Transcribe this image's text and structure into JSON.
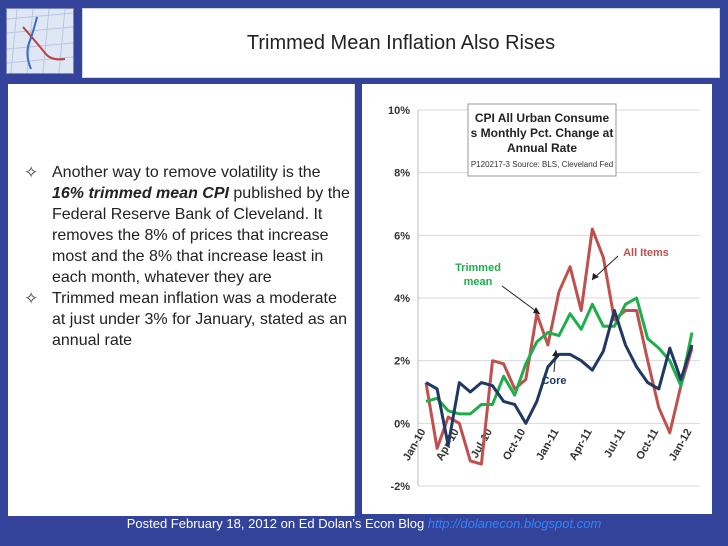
{
  "slide": {
    "title": "Trimmed Mean Inflation Also Rises",
    "bullets": [
      {
        "pre": "Another way to remove volatility is the ",
        "emph": "16% trimmed mean CPI",
        "post": " published by the Federal Reserve Bank of Cleveland. It removes the 8% of prices that increase most and the 8% that increase least in each month, whatever they are"
      },
      {
        "pre": "Trimmed mean inflation was a moderate at just under 3% for January, stated as an annual rate",
        "emph": "",
        "post": ""
      }
    ],
    "footer": {
      "text": "Posted February 18, 2012 on Ed Dolan’s Econ Blog",
      "link": "http://dolanecon.blogspot.com"
    }
  },
  "chart_data": {
    "type": "line",
    "title": "CPI All Urban Consumers Monthly Pct. Change at Annual Rate",
    "subtitle": "P120217-3 Source: BLS, Cleveland Fed",
    "ylim": [
      -2,
      10
    ],
    "yticks": [
      "-2%",
      "0%",
      "2%",
      "4%",
      "6%",
      "8%",
      "10%"
    ],
    "xticklabels": [
      "Jan-10",
      "Apr-10",
      "Jul-10",
      "Oct-10",
      "Jan-11",
      "Apr-11",
      "Jul-11",
      "Oct-11",
      "Jan-12"
    ],
    "annotations": [
      "All Items",
      "Trimmed mean",
      "Core"
    ],
    "colors": {
      "all_items": "#c0504d",
      "trimmed": "#1fae4b",
      "core": "#1f3864"
    },
    "x": [
      "Jan-10",
      "Feb-10",
      "Mar-10",
      "Apr-10",
      "May-10",
      "Jun-10",
      "Jul-10",
      "Aug-10",
      "Sep-10",
      "Oct-10",
      "Nov-10",
      "Dec-10",
      "Jan-11",
      "Feb-11",
      "Mar-11",
      "Apr-11",
      "May-11",
      "Jun-11",
      "Jul-11",
      "Aug-11",
      "Sep-11",
      "Oct-11",
      "Nov-11",
      "Dec-11",
      "Jan-12"
    ],
    "series": [
      {
        "name": "All Items",
        "values": [
          1.3,
          -0.8,
          0.2,
          0.0,
          -1.2,
          -1.3,
          2.0,
          1.9,
          1.1,
          1.4,
          3.5,
          2.5,
          4.2,
          5.0,
          3.6,
          6.2,
          5.3,
          3.3,
          3.6,
          3.6,
          2.0,
          0.5,
          -0.3,
          1.2,
          2.4
        ]
      },
      {
        "name": "Trimmed mean",
        "values": [
          0.7,
          0.8,
          0.4,
          0.3,
          0.3,
          0.6,
          0.6,
          1.5,
          0.9,
          1.9,
          2.6,
          2.9,
          2.8,
          3.5,
          3.0,
          3.8,
          3.1,
          3.1,
          3.8,
          4.0,
          2.7,
          2.4,
          2.0,
          1.2,
          2.9
        ]
      },
      {
        "name": "Core",
        "values": [
          1.3,
          1.1,
          -0.7,
          1.3,
          1.0,
          1.3,
          1.2,
          0.7,
          0.6,
          0.0,
          0.7,
          1.8,
          2.2,
          2.2,
          2.0,
          1.7,
          2.3,
          3.6,
          2.5,
          1.8,
          1.3,
          1.1,
          2.4,
          1.4,
          2.5
        ]
      }
    ]
  }
}
